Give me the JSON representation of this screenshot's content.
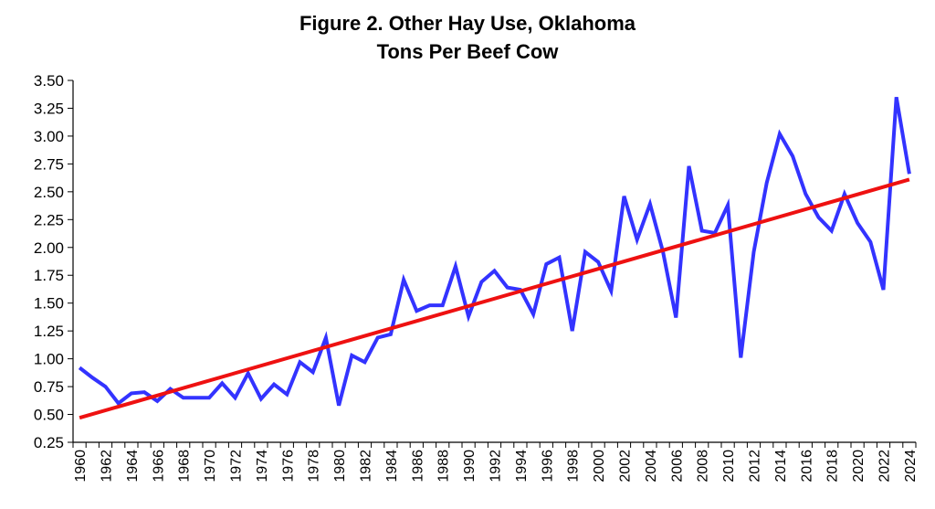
{
  "chart_data": {
    "type": "line",
    "title": "Figure 2. Other Hay Use, Oklahoma",
    "subtitle": "Tons Per Beef Cow",
    "xlabel": "",
    "ylabel": "",
    "ylim": [
      0.25,
      3.5
    ],
    "yticks": [
      "0.25",
      "0.50",
      "0.75",
      "1.00",
      "1.25",
      "1.50",
      "1.75",
      "2.00",
      "2.25",
      "2.50",
      "2.75",
      "3.00",
      "3.25",
      "3.50"
    ],
    "x": [
      1960,
      1961,
      1962,
      1963,
      1964,
      1965,
      1966,
      1967,
      1968,
      1969,
      1970,
      1971,
      1972,
      1973,
      1974,
      1975,
      1976,
      1977,
      1978,
      1979,
      1980,
      1981,
      1982,
      1983,
      1984,
      1985,
      1986,
      1987,
      1988,
      1989,
      1990,
      1991,
      1992,
      1993,
      1994,
      1995,
      1996,
      1997,
      1998,
      1999,
      2000,
      2001,
      2002,
      2003,
      2004,
      2005,
      2006,
      2007,
      2008,
      2009,
      2010,
      2011,
      2012,
      2013,
      2014,
      2015,
      2016,
      2017,
      2018,
      2019,
      2020,
      2021,
      2022,
      2023,
      2024
    ],
    "xtick_labels": [
      "1960",
      "1962",
      "1964",
      "1966",
      "1968",
      "1970",
      "1972",
      "1974",
      "1976",
      "1978",
      "1980",
      "1982",
      "1984",
      "1986",
      "1988",
      "1990",
      "1992",
      "1994",
      "1996",
      "1998",
      "2000",
      "2002",
      "2004",
      "2006",
      "2008",
      "2010",
      "2012",
      "2014",
      "2016",
      "2018",
      "2020",
      "2022",
      "2024"
    ],
    "series": [
      {
        "name": "Other Hay Use",
        "color": "#3333ff",
        "values": [
          0.92,
          0.83,
          0.75,
          0.6,
          0.69,
          0.7,
          0.62,
          0.73,
          0.65,
          0.65,
          0.65,
          0.78,
          0.65,
          0.87,
          0.64,
          0.77,
          0.68,
          0.97,
          0.88,
          1.19,
          0.58,
          1.03,
          0.97,
          1.19,
          1.22,
          1.71,
          1.43,
          1.48,
          1.48,
          1.83,
          1.38,
          1.69,
          1.79,
          1.64,
          1.62,
          1.4,
          1.85,
          1.91,
          1.25,
          1.96,
          1.87,
          1.61,
          2.46,
          2.07,
          2.39,
          1.96,
          1.37,
          2.73,
          2.15,
          2.13,
          2.38,
          1.01,
          1.96,
          2.58,
          3.02,
          2.82,
          2.48,
          2.27,
          2.15,
          2.48,
          2.22,
          2.05,
          1.62,
          3.35,
          2.66
        ]
      },
      {
        "name": "Trend",
        "color": "#ee1111",
        "start": [
          1960,
          0.47
        ],
        "end": [
          2024,
          2.61
        ]
      }
    ]
  }
}
